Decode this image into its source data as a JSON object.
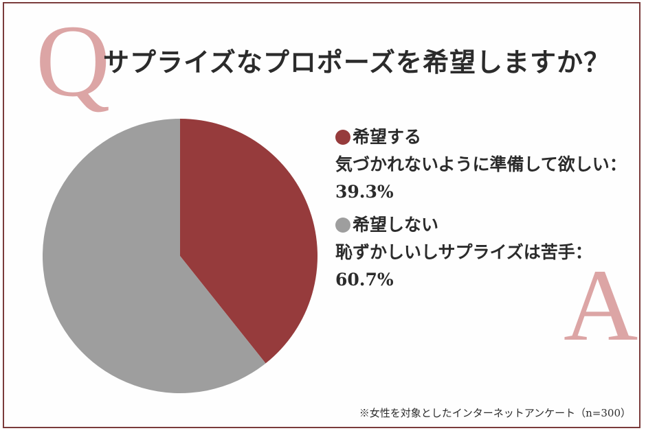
{
  "header": {
    "q_letter": "Q",
    "title": "サプライズなプロポーズを希望しますか？"
  },
  "answer_letter": "A",
  "legend": {
    "items": [
      {
        "label": "希望する",
        "desc": "気づかれないように準備して欲しい：",
        "value_text": "39.3%",
        "color": "#963b3c"
      },
      {
        "label": "希望しない",
        "desc": "恥ずかしいしサプライズは苦手：",
        "value_text": "60.7%",
        "color": "#9e9e9e"
      }
    ]
  },
  "footnote": "※女性を対象としたインターネットアンケート（n=300）",
  "colors": {
    "border": "#7a3b3b",
    "accent_letter": "#dca5a5",
    "slice_yes": "#963b3c",
    "slice_no": "#9e9e9e"
  },
  "chart_data": {
    "type": "pie",
    "title": "サプライズなプロポーズを希望しますか？",
    "categories": [
      "希望する（気づかれないように準備して欲しい）",
      "希望しない（恥ずかしいしサプライズは苦手）"
    ],
    "values": [
      39.3,
      60.7
    ],
    "colors": [
      "#963b3c",
      "#9e9e9e"
    ],
    "start_angle": "12 o'clock, clockwise",
    "legend_position": "right",
    "note": "※女性を対象としたインターネットアンケート（n=300）"
  }
}
